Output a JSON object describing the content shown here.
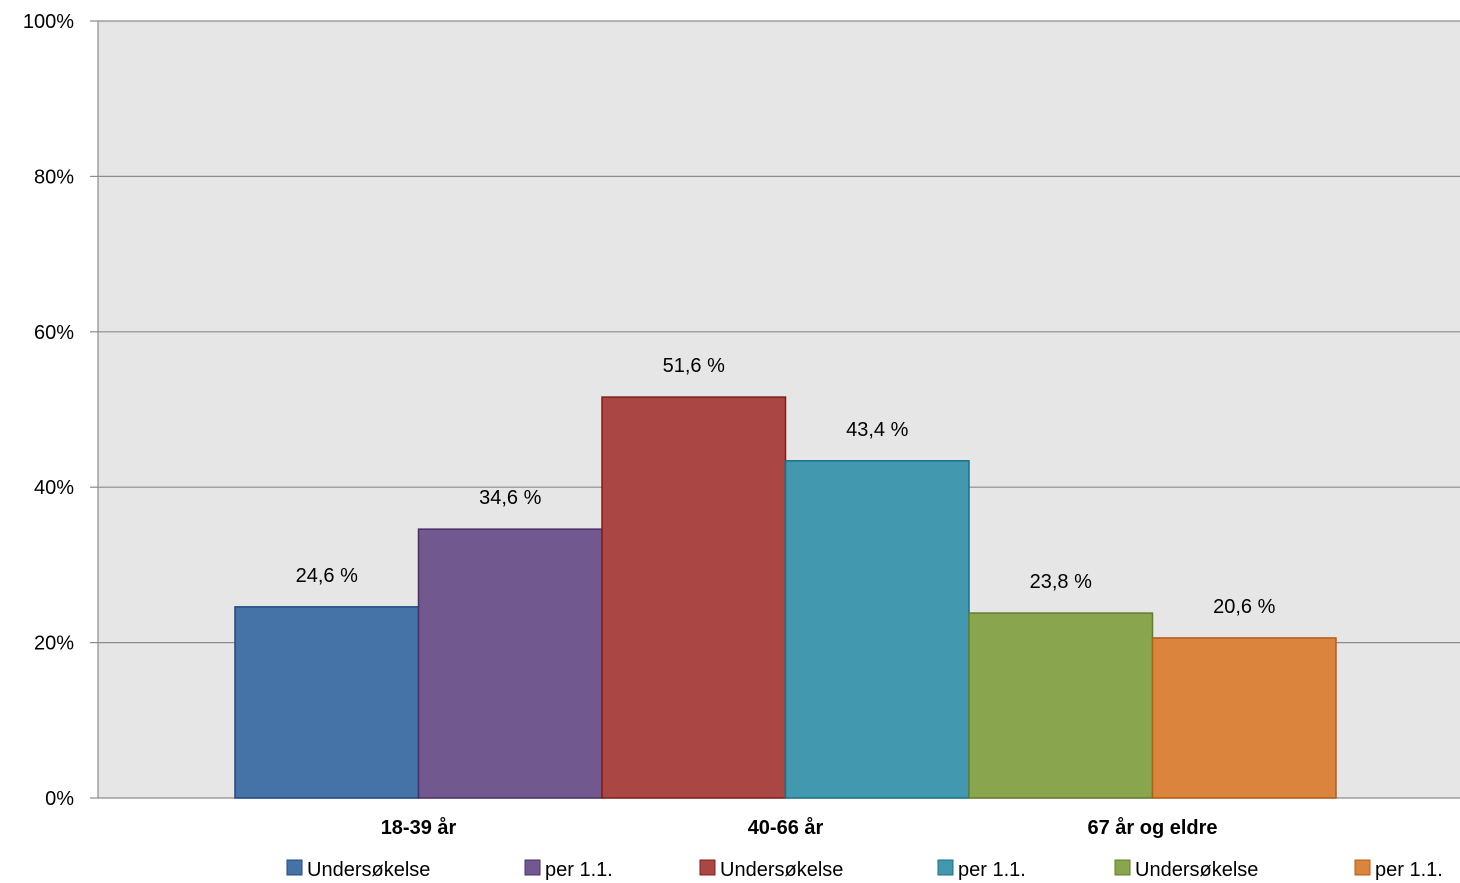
{
  "chart_data": {
    "type": "bar",
    "title": "",
    "xlabel": "",
    "ylabel": "",
    "ylim": [
      0,
      100
    ],
    "yticks": [
      "0%",
      "20%",
      "40%",
      "60%",
      "80%",
      "100%"
    ],
    "categories": [
      "18-39 år",
      "40-66 år",
      "67 år og eldre"
    ],
    "grid": true,
    "legend_position": "bottom",
    "plot_background": "#e6e6e6",
    "series": [
      {
        "name": "Undersøkelse",
        "color": "#4572a7",
        "values": [
          24.6,
          null,
          null
        ],
        "labels": [
          "24,6 %",
          "",
          ""
        ]
      },
      {
        "name": "per 1.1.",
        "color": "#71588f",
        "values": [
          34.6,
          null,
          null
        ],
        "labels": [
          "34,6 %",
          "",
          ""
        ]
      },
      {
        "name": "Undersøkelse",
        "color": "#aa4643",
        "values": [
          null,
          51.6,
          null
        ],
        "labels": [
          "",
          "51,6 %",
          ""
        ]
      },
      {
        "name": "per 1.1.",
        "color": "#4198af",
        "values": [
          null,
          43.4,
          null
        ],
        "labels": [
          "",
          "43,4 %",
          ""
        ]
      },
      {
        "name": "Undersøkelse",
        "color": "#89a54e",
        "values": [
          null,
          null,
          23.8
        ],
        "labels": [
          "",
          "",
          "23,8 %"
        ]
      },
      {
        "name": "per 1.1.",
        "color": "#db843d",
        "values": [
          null,
          null,
          20.6
        ],
        "labels": [
          "",
          "",
          "20,6 %"
        ]
      }
    ]
  }
}
